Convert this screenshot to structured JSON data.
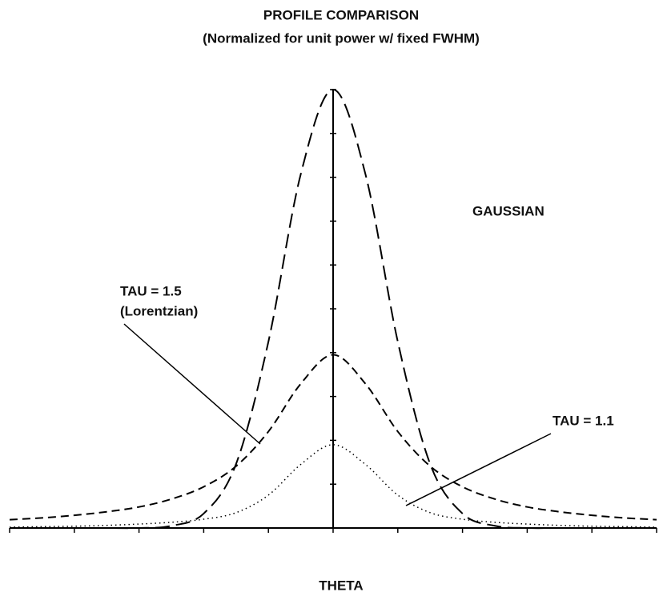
{
  "chart_data": {
    "type": "line",
    "title": "PROFILE  COMPARISON",
    "subtitle": "(Normalized for unit power w/ fixed FWHM)",
    "x_label": "THETA",
    "x": [
      -5,
      -4.5,
      -4,
      -3.5,
      -3,
      -2.5,
      -2,
      -1.5,
      -1,
      -0.5,
      0,
      0.5,
      1,
      1.5,
      2,
      2.5,
      3,
      3.5,
      4,
      4.5,
      5
    ],
    "series": [
      {
        "name": "GAUSSIAN",
        "color": "#000000",
        "dash": "long-dash",
        "values": [
          0,
          0,
          0,
          0,
          0,
          0.05,
          0.33,
          1.46,
          4.25,
          8.07,
          10,
          8.07,
          4.25,
          1.46,
          0.33,
          0.05,
          0,
          0,
          0,
          0,
          0
        ]
      },
      {
        "name": "TAU = 1.5",
        "note": "(Lorentzian)",
        "color": "#000000",
        "dash": "dash",
        "values": [
          0.19,
          0.23,
          0.29,
          0.37,
          0.48,
          0.66,
          0.94,
          1.41,
          2.2,
          3.29,
          3.95,
          3.29,
          2.2,
          1.41,
          0.94,
          0.66,
          0.48,
          0.37,
          0.29,
          0.23,
          0.19
        ]
      },
      {
        "name": "TAU = 1.1",
        "color": "#000000",
        "dash": "dot",
        "values": [
          0.02,
          0.03,
          0.04,
          0.06,
          0.09,
          0.13,
          0.2,
          0.35,
          0.75,
          1.45,
          1.9,
          1.45,
          0.75,
          0.35,
          0.2,
          0.13,
          0.09,
          0.06,
          0.04,
          0.03,
          0.02
        ]
      }
    ],
    "xlim": [
      -5,
      5
    ],
    "xticks": [
      -5,
      -4,
      -3,
      -2,
      -1,
      0,
      1,
      2,
      3,
      4,
      5
    ],
    "ylim": [
      0,
      10
    ],
    "yticks": [
      0,
      1,
      2,
      3,
      4,
      5,
      6,
      7,
      8,
      9,
      10
    ],
    "grid": false
  }
}
